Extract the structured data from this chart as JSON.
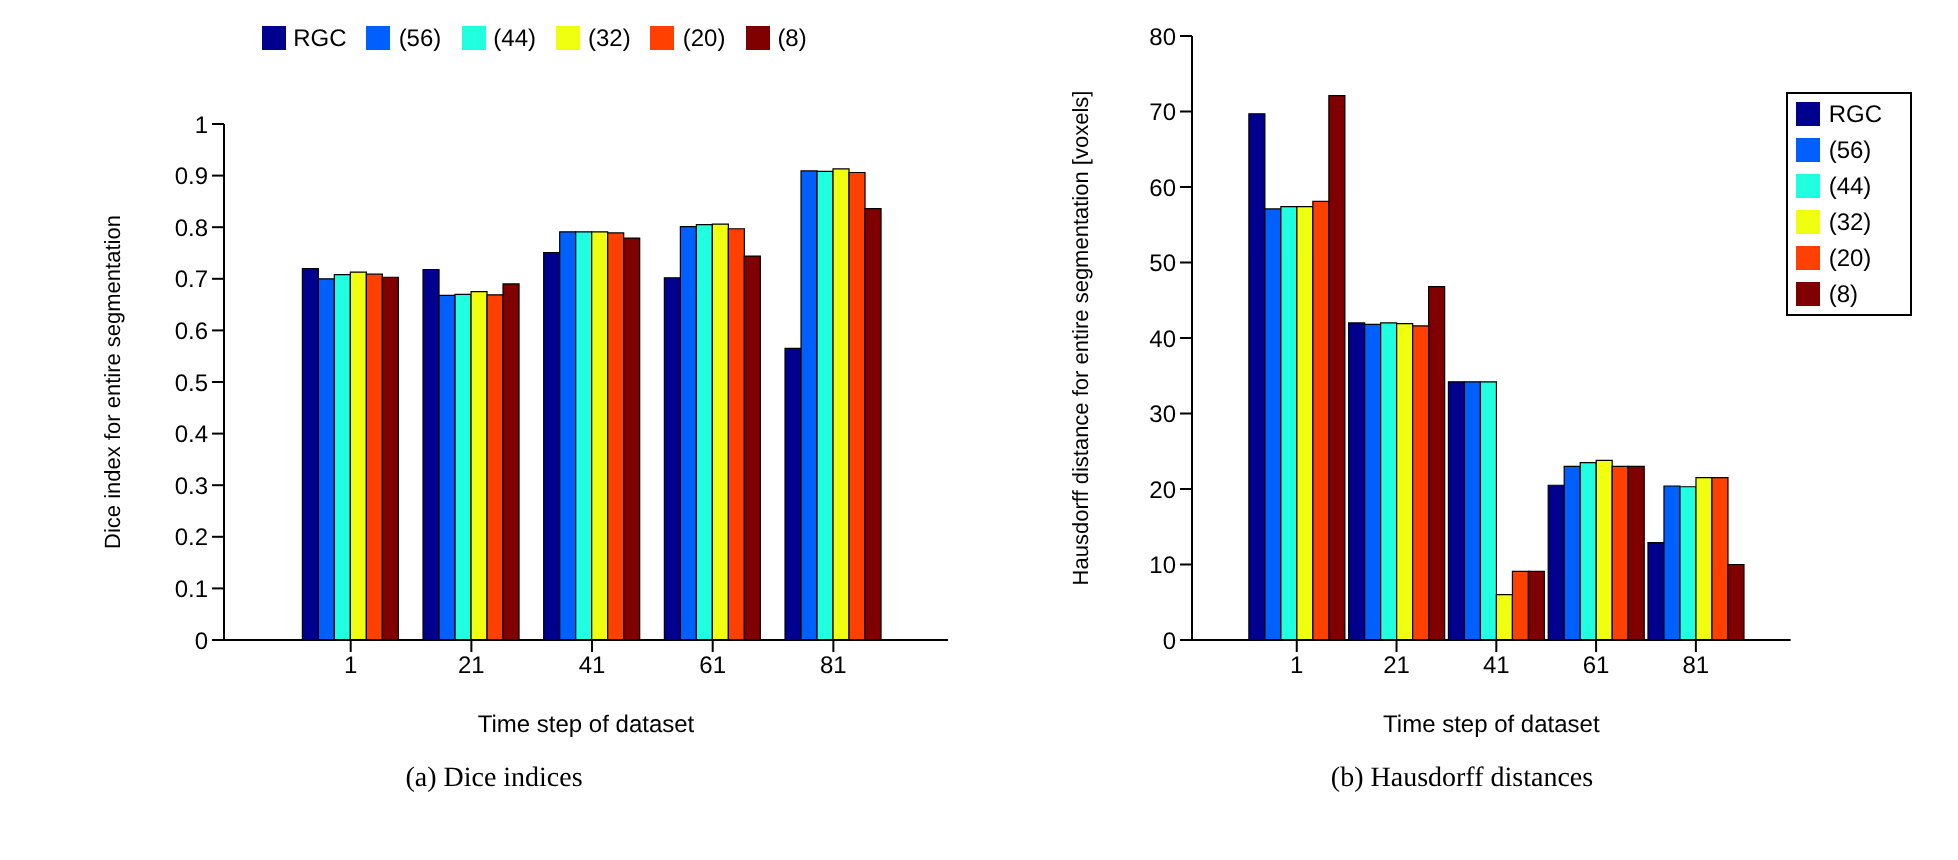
{
  "chart_data": [
    {
      "type": "bar",
      "title": "(a) Dice indices",
      "xlabel": "Time step of dataset",
      "ylabel": "Dice index for entire segmentation",
      "x": [
        1,
        21,
        41,
        61,
        81
      ],
      "xlim": [
        -20,
        100
      ],
      "xticks": [
        1,
        21,
        41,
        61,
        81
      ],
      "ylim": [
        0,
        1
      ],
      "yticks": [
        0,
        0.1,
        0.2,
        0.3,
        0.4,
        0.5,
        0.6,
        0.7,
        0.8,
        0.9,
        1
      ],
      "grid": false,
      "legend": "top",
      "series": [
        {
          "name": "RGC",
          "color": "#00008f",
          "values": [
            0.72,
            0.718,
            0.751,
            0.702,
            0.565
          ]
        },
        {
          "name": "(56)",
          "color": "#0060ff",
          "values": [
            0.7,
            0.668,
            0.791,
            0.801,
            0.909
          ]
        },
        {
          "name": "(44)",
          "color": "#20ffe0",
          "values": [
            0.708,
            0.67,
            0.791,
            0.805,
            0.908
          ]
        },
        {
          "name": "(32)",
          "color": "#f0ff10",
          "values": [
            0.713,
            0.675,
            0.791,
            0.806,
            0.913
          ]
        },
        {
          "name": "(20)",
          "color": "#ff4000",
          "values": [
            0.709,
            0.669,
            0.789,
            0.797,
            0.906
          ]
        },
        {
          "name": "(8)",
          "color": "#800000",
          "values": [
            0.703,
            0.69,
            0.779,
            0.744,
            0.836
          ]
        }
      ]
    },
    {
      "type": "bar",
      "title": "(b) Hausdorff distances",
      "xlabel": "Time step of dataset",
      "ylabel": "Hausdorff distance for entire segmentation [voxels]",
      "x": [
        1,
        21,
        41,
        61,
        81
      ],
      "xlim": [
        -20,
        100
      ],
      "xticks": [
        1,
        21,
        41,
        61,
        81
      ],
      "ylim": [
        0,
        80
      ],
      "yticks": [
        0,
        10,
        20,
        30,
        40,
        50,
        60,
        70,
        80
      ],
      "grid": false,
      "legend": "top right",
      "series": [
        {
          "name": "RGC",
          "color": "#00008f",
          "values": [
            69.7,
            42.0,
            34.2,
            20.5,
            12.9
          ]
        },
        {
          "name": "(56)",
          "color": "#0060ff",
          "values": [
            57.1,
            41.8,
            34.2,
            23.0,
            20.4
          ]
        },
        {
          "name": "(44)",
          "color": "#20ffe0",
          "values": [
            57.4,
            42.0,
            34.2,
            23.5,
            20.3
          ]
        },
        {
          "name": "(32)",
          "color": "#f0ff10",
          "values": [
            57.4,
            41.9,
            6.0,
            23.8,
            21.5
          ]
        },
        {
          "name": "(20)",
          "color": "#ff4000",
          "values": [
            58.1,
            41.6,
            9.1,
            23.0,
            21.5
          ]
        },
        {
          "name": "(8)",
          "color": "#800000",
          "values": [
            72.1,
            46.8,
            9.1,
            23.0,
            10.0
          ]
        }
      ]
    }
  ]
}
